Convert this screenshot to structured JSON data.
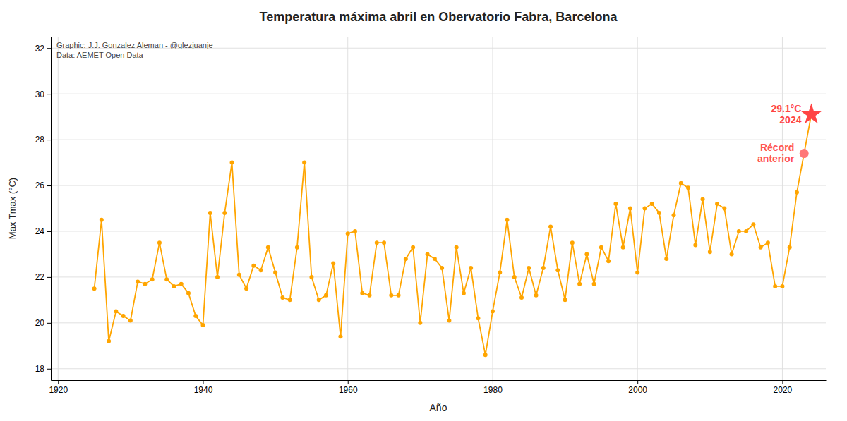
{
  "chart_data": {
    "type": "line",
    "title": "Temperatura máxima abril en Obervatorio Fabra, Barcelona",
    "xlabel": "Año",
    "ylabel": "Max Tmax (°C)",
    "x": [
      1925,
      1926,
      1927,
      1928,
      1929,
      1930,
      1931,
      1932,
      1933,
      1934,
      1935,
      1936,
      1937,
      1938,
      1939,
      1940,
      1941,
      1942,
      1943,
      1944,
      1945,
      1946,
      1947,
      1948,
      1949,
      1950,
      1951,
      1952,
      1953,
      1954,
      1955,
      1956,
      1957,
      1958,
      1959,
      1960,
      1961,
      1962,
      1963,
      1964,
      1965,
      1966,
      1967,
      1968,
      1969,
      1970,
      1971,
      1972,
      1973,
      1974,
      1975,
      1976,
      1977,
      1978,
      1979,
      1980,
      1981,
      1982,
      1983,
      1984,
      1985,
      1986,
      1987,
      1988,
      1989,
      1990,
      1991,
      1992,
      1993,
      1994,
      1995,
      1996,
      1997,
      1998,
      1999,
      2000,
      2001,
      2002,
      2003,
      2004,
      2005,
      2006,
      2007,
      2008,
      2009,
      2010,
      2011,
      2012,
      2013,
      2014,
      2015,
      2016,
      2017,
      2018,
      2019,
      2020,
      2021,
      2022,
      2023,
      2024
    ],
    "series": [
      {
        "type": "line",
        "color": "#FFA500",
        "marker": "circle",
        "values": [
          21.5,
          24.5,
          19.2,
          20.5,
          20.3,
          20.1,
          21.8,
          21.7,
          21.9,
          23.5,
          21.9,
          21.6,
          21.7,
          21.3,
          20.3,
          19.9,
          24.8,
          22.0,
          24.8,
          27.0,
          22.1,
          21.5,
          22.5,
          22.3,
          23.3,
          22.2,
          21.1,
          21.0,
          23.3,
          27.0,
          22.0,
          21.0,
          21.2,
          22.6,
          19.4,
          23.9,
          24.0,
          21.3,
          21.2,
          23.5,
          23.5,
          21.2,
          21.2,
          22.8,
          23.3,
          20.0,
          23.0,
          22.8,
          22.4,
          20.1,
          23.3,
          21.3,
          22.4,
          20.2,
          18.6,
          20.5,
          22.2,
          24.5,
          22.0,
          21.1,
          22.4,
          21.2,
          22.4,
          24.2,
          22.3,
          21.0,
          23.5,
          21.7,
          23.0,
          21.7,
          23.3,
          22.7,
          25.2,
          23.3,
          25.0,
          22.2,
          25.0,
          25.2,
          24.8,
          22.8,
          24.7,
          26.1,
          25.9,
          23.4,
          25.4,
          23.1,
          25.2,
          25.0,
          23.0,
          24.0,
          24.0,
          24.3,
          23.3,
          23.5,
          21.6,
          21.6,
          23.3,
          25.7,
          27.4,
          29.1
        ]
      },
      {
        "type": "scatter",
        "color": "#FF4444",
        "marker": "star",
        "x": [
          2024
        ],
        "values": [
          29.1
        ]
      },
      {
        "type": "scatter",
        "color": "#FF7777",
        "marker": "circle",
        "x": [
          2023
        ],
        "values": [
          27.4
        ]
      }
    ],
    "xlim": [
      1919,
      2026
    ],
    "ylim": [
      17.5,
      32.5
    ],
    "xticks": [
      1920,
      1940,
      1960,
      1980,
      2000,
      2020
    ],
    "yticks": [
      18,
      20,
      22,
      24,
      26,
      28,
      30,
      32
    ],
    "grid": true,
    "annotations": [
      {
        "text": "Graphic: J.J. Gonzalez Aleman - @glezjuanje"
      },
      {
        "text": "Data: AEMET Open Data"
      },
      {
        "text": "29.1°C",
        "color": "#FF4444",
        "x": 2024,
        "y": 29.1
      },
      {
        "text": "2024",
        "color": "#FF4444",
        "x": 2024,
        "y": 29.1
      },
      {
        "text": "Récord\nanterior",
        "color": "#FF5555",
        "x": 2023,
        "y": 27.4
      }
    ]
  }
}
